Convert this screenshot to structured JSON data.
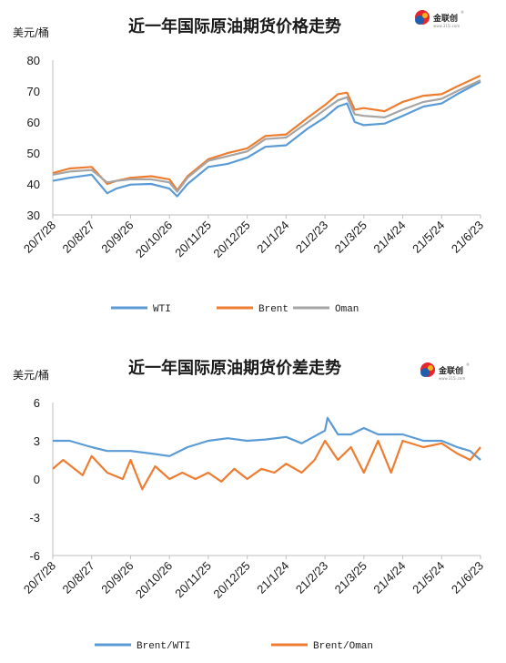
{
  "logo": {
    "text": "金联创",
    "subtext": "www.315i.com",
    "mark": "®"
  },
  "chart_data": [
    {
      "id": "price",
      "type": "line",
      "title": "近一年国际原油期货价格走势",
      "unit": "美元/桶",
      "ylim": [
        30,
        80
      ],
      "yticks": [
        30,
        40,
        50,
        60,
        70,
        80
      ],
      "x_range": [
        "2020-07-28",
        "2021-06-23"
      ],
      "categories": [
        "20/7/28",
        "20/8/27",
        "20/9/26",
        "20/10/26",
        "20/11/25",
        "20/12/25",
        "21/1/24",
        "21/2/23",
        "21/3/25",
        "21/4/24",
        "21/5/24",
        "21/6/23"
      ],
      "grid": false,
      "legend_position": "bottom",
      "series": [
        {
          "name": "WTI",
          "color": "#5b9bd5",
          "points": [
            [
              "2020-07-28",
              41.0
            ],
            [
              "2020-08-10",
              42.0
            ],
            [
              "2020-08-27",
              43.0
            ],
            [
              "2020-09-08",
              37.0
            ],
            [
              "2020-09-15",
              38.5
            ],
            [
              "2020-09-26",
              39.8
            ],
            [
              "2020-10-12",
              40.0
            ],
            [
              "2020-10-26",
              38.5
            ],
            [
              "2020-11-01",
              36.0
            ],
            [
              "2020-11-09",
              40.0
            ],
            [
              "2020-11-25",
              45.5
            ],
            [
              "2020-12-10",
              46.5
            ],
            [
              "2020-12-25",
              48.5
            ],
            [
              "2021-01-08",
              52.0
            ],
            [
              "2021-01-24",
              52.5
            ],
            [
              "2021-02-10",
              58.0
            ],
            [
              "2021-02-23",
              61.5
            ],
            [
              "2021-03-05",
              65.0
            ],
            [
              "2021-03-12",
              66.0
            ],
            [
              "2021-03-18",
              60.0
            ],
            [
              "2021-03-25",
              59.0
            ],
            [
              "2021-04-10",
              59.5
            ],
            [
              "2021-04-24",
              62.0
            ],
            [
              "2021-05-10",
              65.0
            ],
            [
              "2021-05-24",
              66.0
            ],
            [
              "2021-06-05",
              69.0
            ],
            [
              "2021-06-23",
              73.0
            ]
          ]
        },
        {
          "name": "Brent",
          "color": "#ed7d31",
          "points": [
            [
              "2020-07-28",
              43.5
            ],
            [
              "2020-08-10",
              45.0
            ],
            [
              "2020-08-27",
              45.5
            ],
            [
              "2020-09-08",
              40.0
            ],
            [
              "2020-09-15",
              41.0
            ],
            [
              "2020-09-26",
              42.0
            ],
            [
              "2020-10-12",
              42.5
            ],
            [
              "2020-10-26",
              41.5
            ],
            [
              "2020-11-01",
              38.0
            ],
            [
              "2020-11-09",
              42.5
            ],
            [
              "2020-11-25",
              48.0
            ],
            [
              "2020-12-10",
              50.0
            ],
            [
              "2020-12-25",
              51.5
            ],
            [
              "2021-01-08",
              55.5
            ],
            [
              "2021-01-24",
              56.0
            ],
            [
              "2021-02-10",
              61.5
            ],
            [
              "2021-02-23",
              65.5
            ],
            [
              "2021-03-05",
              69.0
            ],
            [
              "2021-03-12",
              69.5
            ],
            [
              "2021-03-18",
              64.0
            ],
            [
              "2021-03-25",
              64.5
            ],
            [
              "2021-04-10",
              63.5
            ],
            [
              "2021-04-24",
              66.5
            ],
            [
              "2021-05-10",
              68.5
            ],
            [
              "2021-05-24",
              69.0
            ],
            [
              "2021-06-05",
              71.5
            ],
            [
              "2021-06-23",
              75.0
            ]
          ]
        },
        {
          "name": "Oman",
          "color": "#a5a5a5",
          "points": [
            [
              "2020-07-28",
              43.0
            ],
            [
              "2020-08-10",
              44.0
            ],
            [
              "2020-08-27",
              44.5
            ],
            [
              "2020-09-08",
              40.5
            ],
            [
              "2020-09-15",
              41.0
            ],
            [
              "2020-09-26",
              41.5
            ],
            [
              "2020-10-12",
              41.5
            ],
            [
              "2020-10-26",
              40.5
            ],
            [
              "2020-11-01",
              37.5
            ],
            [
              "2020-11-09",
              42.0
            ],
            [
              "2020-11-25",
              47.5
            ],
            [
              "2020-12-10",
              49.0
            ],
            [
              "2020-12-25",
              50.5
            ],
            [
              "2021-01-08",
              54.5
            ],
            [
              "2021-01-24",
              55.0
            ],
            [
              "2021-02-10",
              60.0
            ],
            [
              "2021-02-23",
              64.0
            ],
            [
              "2021-03-05",
              67.0
            ],
            [
              "2021-03-12",
              68.0
            ],
            [
              "2021-03-18",
              62.5
            ],
            [
              "2021-03-25",
              62.0
            ],
            [
              "2021-04-10",
              61.5
            ],
            [
              "2021-04-24",
              64.0
            ],
            [
              "2021-05-10",
              66.5
            ],
            [
              "2021-05-24",
              67.5
            ],
            [
              "2021-06-05",
              70.0
            ],
            [
              "2021-06-23",
              73.5
            ]
          ]
        }
      ]
    },
    {
      "id": "spread",
      "type": "line",
      "title": "近一年国际原油期货价差走势",
      "unit": "美元/桶",
      "ylim": [
        -6,
        6
      ],
      "yticks": [
        -6,
        -3,
        0,
        3,
        6
      ],
      "x_range": [
        "2020-07-28",
        "2021-06-23"
      ],
      "categories": [
        "20/7/28",
        "20/8/27",
        "20/9/26",
        "20/10/26",
        "20/11/25",
        "20/12/25",
        "21/1/24",
        "21/2/23",
        "21/3/25",
        "21/4/24",
        "21/5/24",
        "21/6/23"
      ],
      "grid": false,
      "legend_position": "bottom",
      "series": [
        {
          "name": "Brent/WTI",
          "color": "#5b9bd5",
          "points": [
            [
              "2020-07-28",
              3.0
            ],
            [
              "2020-08-10",
              3.0
            ],
            [
              "2020-08-27",
              2.5
            ],
            [
              "2020-09-08",
              2.2
            ],
            [
              "2020-09-26",
              2.2
            ],
            [
              "2020-10-12",
              2.0
            ],
            [
              "2020-10-26",
              1.8
            ],
            [
              "2020-11-09",
              2.5
            ],
            [
              "2020-11-25",
              3.0
            ],
            [
              "2020-12-10",
              3.2
            ],
            [
              "2020-12-25",
              3.0
            ],
            [
              "2021-01-08",
              3.1
            ],
            [
              "2021-01-24",
              3.3
            ],
            [
              "2021-02-05",
              2.8
            ],
            [
              "2021-02-23",
              3.8
            ],
            [
              "2021-02-25",
              4.8
            ],
            [
              "2021-03-05",
              3.5
            ],
            [
              "2021-03-15",
              3.5
            ],
            [
              "2021-03-25",
              4.0
            ],
            [
              "2021-04-05",
              3.5
            ],
            [
              "2021-04-15",
              3.5
            ],
            [
              "2021-04-24",
              3.5
            ],
            [
              "2021-05-10",
              3.0
            ],
            [
              "2021-05-24",
              3.0
            ],
            [
              "2021-06-05",
              2.5
            ],
            [
              "2021-06-15",
              2.2
            ],
            [
              "2021-06-23",
              1.5
            ]
          ]
        },
        {
          "name": "Brent/Oman",
          "color": "#ed7d31",
          "points": [
            [
              "2020-07-28",
              0.8
            ],
            [
              "2020-08-05",
              1.5
            ],
            [
              "2020-08-20",
              0.3
            ],
            [
              "2020-08-27",
              1.8
            ],
            [
              "2020-09-08",
              0.5
            ],
            [
              "2020-09-20",
              0.0
            ],
            [
              "2020-09-26",
              1.5
            ],
            [
              "2020-10-05",
              -0.8
            ],
            [
              "2020-10-15",
              1.0
            ],
            [
              "2020-10-26",
              0.0
            ],
            [
              "2020-11-05",
              0.5
            ],
            [
              "2020-11-15",
              0.0
            ],
            [
              "2020-11-25",
              0.5
            ],
            [
              "2020-12-05",
              -0.2
            ],
            [
              "2020-12-15",
              0.8
            ],
            [
              "2020-12-25",
              0.0
            ],
            [
              "2021-01-05",
              0.8
            ],
            [
              "2021-01-15",
              0.5
            ],
            [
              "2021-01-24",
              1.2
            ],
            [
              "2021-02-05",
              0.5
            ],
            [
              "2021-02-15",
              1.5
            ],
            [
              "2021-02-23",
              3.0
            ],
            [
              "2021-03-05",
              1.5
            ],
            [
              "2021-03-15",
              2.5
            ],
            [
              "2021-03-25",
              0.5
            ],
            [
              "2021-04-05",
              3.0
            ],
            [
              "2021-04-15",
              0.5
            ],
            [
              "2021-04-24",
              3.0
            ],
            [
              "2021-05-10",
              2.5
            ],
            [
              "2021-05-24",
              2.8
            ],
            [
              "2021-06-05",
              2.0
            ],
            [
              "2021-06-15",
              1.5
            ],
            [
              "2021-06-23",
              2.5
            ]
          ]
        }
      ]
    }
  ]
}
